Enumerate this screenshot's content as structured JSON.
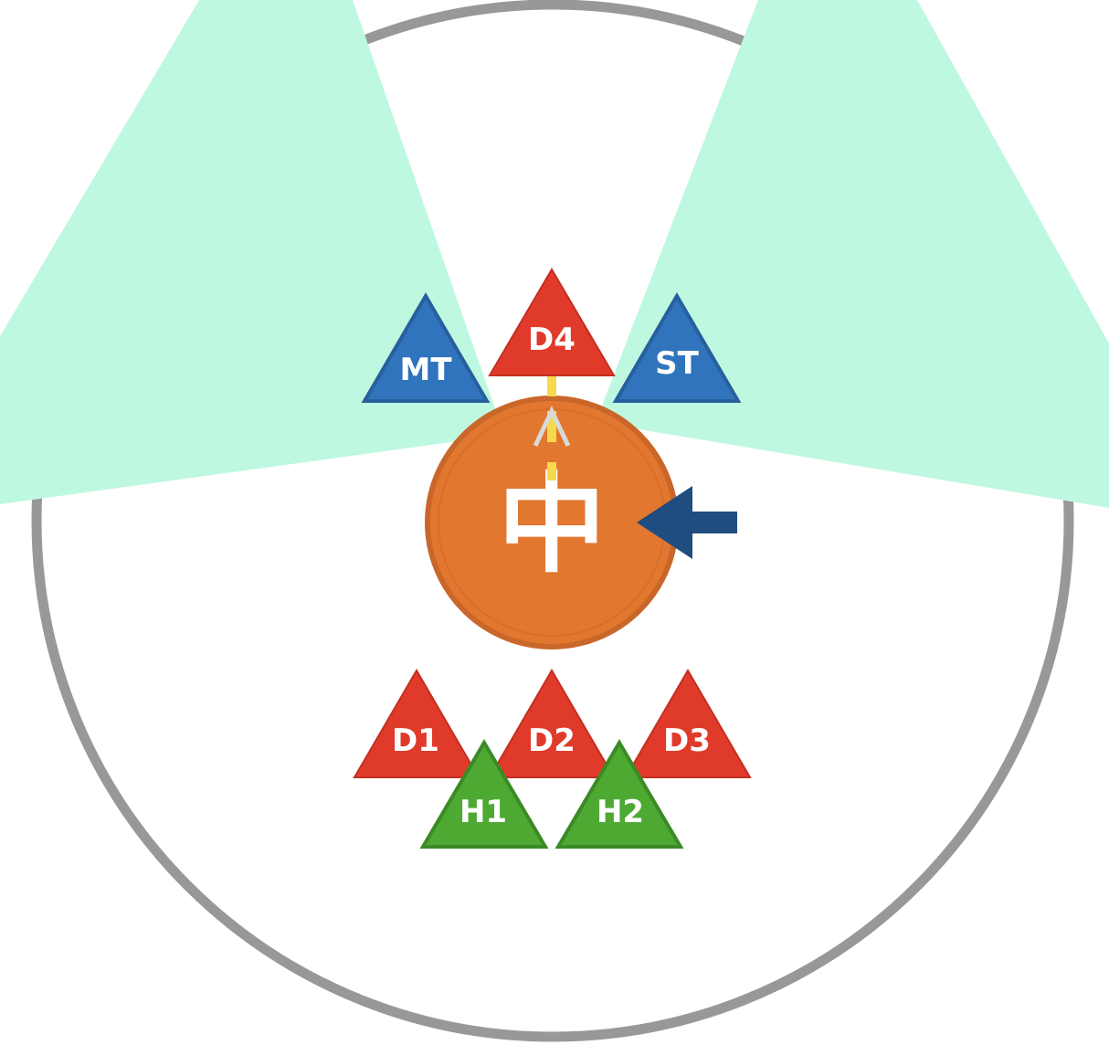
{
  "colors": {
    "arena_border": "#989898",
    "cone_fill": "#bff8e0",
    "boss_fill": "#e2772f",
    "boss_border": "#c9672a",
    "tether": "#f7d94c",
    "facing_marker": "#d9d9d9",
    "arrow": "#1f4d7f",
    "dps": "#e03a2a",
    "dps_border": "#c22f22",
    "tank": "#2f74bc",
    "tank_border": "#27609c",
    "healer": "#4ea932",
    "healer_border": "#3a8a25"
  },
  "boss": {
    "label": "中"
  },
  "players": {
    "mt": {
      "label": "MT",
      "role": "tank"
    },
    "st": {
      "label": "ST",
      "role": "tank"
    },
    "d4": {
      "label": "D4",
      "role": "dps"
    },
    "d1": {
      "label": "D1",
      "role": "dps"
    },
    "d2": {
      "label": "D2",
      "role": "dps"
    },
    "d3": {
      "label": "D3",
      "role": "dps"
    },
    "h1": {
      "label": "H1",
      "role": "healer"
    },
    "h2": {
      "label": "H2",
      "role": "healer"
    }
  },
  "icons": {
    "boss_facing": "chevron-up-icon",
    "push_arrow": "arrow-left-icon"
  }
}
